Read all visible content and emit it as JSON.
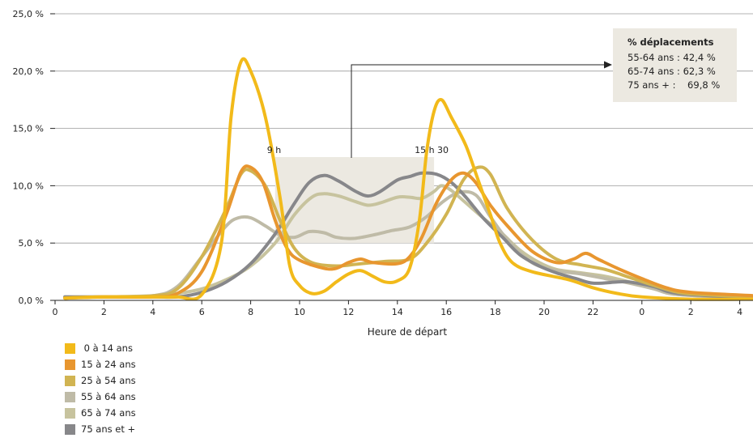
{
  "chart_data": {
    "type": "line",
    "xlabel": "Heure de départ",
    "ylabel": "",
    "x_ticks": [
      "0",
      "2",
      "4",
      "6",
      "8",
      "10",
      "12",
      "14",
      "16",
      "18",
      "20",
      "22",
      "0",
      "2",
      "4"
    ],
    "y_ticks": [
      "0,0 %",
      "5,0 %",
      "10,0 %",
      "15,0 %",
      "20,0 %",
      "25,0 %"
    ],
    "ylim": [
      0,
      25
    ],
    "xlim_hours": [
      0,
      28.6
    ],
    "grid": "horizontal",
    "legend_position": "bottom-left",
    "highlight_band": {
      "x_start": 9,
      "x_end": 15.5,
      "y_start": 5,
      "y_end": 12.5,
      "left_label": "9 h",
      "right_label": "15 h 30"
    },
    "info_box": {
      "title": "% déplacements",
      "lines": [
        "55-64 ans : 42,4 %",
        "65-74 ans : 62,3 %",
        "75 ans + :    69,8 %"
      ]
    },
    "series": [
      {
        "name": " 0 à 14 ans",
        "color": "#F2BA1A",
        "points": [
          [
            0.4,
            0.2
          ],
          [
            2,
            0.3
          ],
          [
            4,
            0.3
          ],
          [
            5,
            0.3
          ],
          [
            6,
            0.5
          ],
          [
            6.8,
            5
          ],
          [
            7.2,
            16
          ],
          [
            7.6,
            20.8
          ],
          [
            8,
            20
          ],
          [
            8.6,
            16
          ],
          [
            9.2,
            9
          ],
          [
            9.6,
            3
          ],
          [
            10,
            1.3
          ],
          [
            10.5,
            0.6
          ],
          [
            11,
            0.8
          ],
          [
            11.5,
            1.6
          ],
          [
            12,
            2.3
          ],
          [
            12.5,
            2.6
          ],
          [
            13,
            2.1
          ],
          [
            13.5,
            1.6
          ],
          [
            14,
            1.7
          ],
          [
            14.5,
            2.8
          ],
          [
            14.9,
            7
          ],
          [
            15.2,
            13
          ],
          [
            15.5,
            16.5
          ],
          [
            15.8,
            17.5
          ],
          [
            16.2,
            16
          ],
          [
            16.8,
            13.5
          ],
          [
            17.3,
            10.5
          ],
          [
            17.8,
            7.5
          ],
          [
            18.2,
            5
          ],
          [
            18.7,
            3.3
          ],
          [
            19.5,
            2.5
          ],
          [
            21,
            1.8
          ],
          [
            22,
            1.1
          ],
          [
            23,
            0.6
          ],
          [
            24,
            0.3
          ],
          [
            26,
            0.1
          ],
          [
            28.6,
            0.1
          ]
        ]
      },
      {
        "name": "15 à 24 ans",
        "color": "#E8962F",
        "points": [
          [
            0.4,
            0.2
          ],
          [
            2,
            0.3
          ],
          [
            4,
            0.3
          ],
          [
            5,
            0.6
          ],
          [
            6,
            2.5
          ],
          [
            7,
            7.5
          ],
          [
            7.6,
            11.2
          ],
          [
            8,
            11.6
          ],
          [
            8.5,
            10.3
          ],
          [
            9,
            7
          ],
          [
            9.5,
            4.5
          ],
          [
            10,
            3.5
          ],
          [
            11,
            2.8
          ],
          [
            11.5,
            2.8
          ],
          [
            12,
            3.3
          ],
          [
            12.5,
            3.6
          ],
          [
            13,
            3.3
          ],
          [
            14,
            3.2
          ],
          [
            14.5,
            3.8
          ],
          [
            15,
            5.5
          ],
          [
            15.6,
            8.5
          ],
          [
            16.2,
            10.5
          ],
          [
            16.7,
            11.1
          ],
          [
            17.2,
            10.3
          ],
          [
            17.8,
            8.3
          ],
          [
            18.5,
            6.5
          ],
          [
            19.5,
            4.3
          ],
          [
            20.5,
            3.3
          ],
          [
            21.2,
            3.6
          ],
          [
            21.7,
            4.1
          ],
          [
            22.2,
            3.6
          ],
          [
            23,
            2.8
          ],
          [
            24,
            1.9
          ],
          [
            25,
            1.1
          ],
          [
            26,
            0.7
          ],
          [
            28.6,
            0.4
          ]
        ]
      },
      {
        "name": "25 à 54 ans",
        "color": "#D1B452",
        "points": [
          [
            0.4,
            0.2
          ],
          [
            2,
            0.3
          ],
          [
            4,
            0.4
          ],
          [
            5,
            1
          ],
          [
            6,
            3.8
          ],
          [
            7,
            8
          ],
          [
            7.6,
            11
          ],
          [
            8,
            11.3
          ],
          [
            8.6,
            10
          ],
          [
            9.2,
            7
          ],
          [
            9.8,
            4.5
          ],
          [
            10.5,
            3.3
          ],
          [
            11.5,
            3.0
          ],
          [
            12.5,
            3.2
          ],
          [
            13.5,
            3.4
          ],
          [
            14.5,
            3.6
          ],
          [
            15.2,
            5
          ],
          [
            16,
            7.5
          ],
          [
            16.7,
            10.5
          ],
          [
            17.3,
            11.6
          ],
          [
            17.8,
            11
          ],
          [
            18.5,
            8
          ],
          [
            19.5,
            5.3
          ],
          [
            20.5,
            3.6
          ],
          [
            21.5,
            3.1
          ],
          [
            22.5,
            2.7
          ],
          [
            23.5,
            2.0
          ],
          [
            24.5,
            1.3
          ],
          [
            25.5,
            0.7
          ],
          [
            26.5,
            0.5
          ],
          [
            28.6,
            0.3
          ]
        ]
      },
      {
        "name": "55 à 64 ans",
        "color": "#BFBBA7",
        "points": [
          [
            0.4,
            0.3
          ],
          [
            2,
            0.3
          ],
          [
            4,
            0.4
          ],
          [
            5,
            1.2
          ],
          [
            6,
            3.8
          ],
          [
            7,
            6.5
          ],
          [
            7.5,
            7.2
          ],
          [
            8,
            7.2
          ],
          [
            8.6,
            6.5
          ],
          [
            9.2,
            5.7
          ],
          [
            9.8,
            5.5
          ],
          [
            10.4,
            6.0
          ],
          [
            11,
            5.9
          ],
          [
            11.5,
            5.5
          ],
          [
            12.2,
            5.4
          ],
          [
            13,
            5.7
          ],
          [
            13.8,
            6.1
          ],
          [
            14.5,
            6.4
          ],
          [
            15.2,
            7.3
          ],
          [
            15.8,
            8.5
          ],
          [
            16.5,
            9.4
          ],
          [
            17.2,
            9.2
          ],
          [
            17.8,
            7.3
          ],
          [
            18.5,
            5.3
          ],
          [
            19.5,
            3.3
          ],
          [
            20.5,
            2.6
          ],
          [
            21.5,
            2.3
          ],
          [
            22.5,
            1.9
          ],
          [
            23.5,
            1.5
          ],
          [
            24.5,
            1.0
          ],
          [
            25.5,
            0.5
          ],
          [
            28.6,
            0.2
          ]
        ]
      },
      {
        "name": "65 à 74 ans",
        "color": "#C7C39E",
        "points": [
          [
            0.4,
            0.3
          ],
          [
            2,
            0.3
          ],
          [
            4,
            0.4
          ],
          [
            5,
            0.6
          ],
          [
            6,
            1.0
          ],
          [
            7,
            1.8
          ],
          [
            8,
            3.0
          ],
          [
            9,
            5
          ],
          [
            9.8,
            7.5
          ],
          [
            10.5,
            9.0
          ],
          [
            11,
            9.3
          ],
          [
            11.6,
            9.1
          ],
          [
            12.3,
            8.6
          ],
          [
            12.8,
            8.3
          ],
          [
            13.3,
            8.5
          ],
          [
            14,
            9.0
          ],
          [
            14.5,
            9.0
          ],
          [
            15,
            8.9
          ],
          [
            15.5,
            9.5
          ],
          [
            15.8,
            10
          ],
          [
            16.2,
            9.6
          ],
          [
            16.8,
            8.5
          ],
          [
            17.5,
            7.2
          ],
          [
            18.3,
            5.8
          ],
          [
            19,
            4.4
          ],
          [
            19.8,
            3.3
          ],
          [
            20.5,
            2.7
          ],
          [
            21.5,
            2.4
          ],
          [
            22.5,
            2.1
          ],
          [
            23.5,
            1.6
          ],
          [
            24.5,
            1.0
          ],
          [
            25.5,
            0.5
          ],
          [
            28.6,
            0.2
          ]
        ]
      },
      {
        "name": "75 ans et +",
        "color": "#87878A",
        "points": [
          [
            0.4,
            0.3
          ],
          [
            2,
            0.3
          ],
          [
            4,
            0.3
          ],
          [
            5,
            0.3
          ],
          [
            6,
            0.7
          ],
          [
            7,
            1.6
          ],
          [
            8,
            3.2
          ],
          [
            9,
            5.8
          ],
          [
            9.8,
            8.5
          ],
          [
            10.4,
            10.3
          ],
          [
            11,
            10.9
          ],
          [
            11.6,
            10.4
          ],
          [
            12.3,
            9.5
          ],
          [
            12.8,
            9.1
          ],
          [
            13.3,
            9.5
          ],
          [
            14,
            10.5
          ],
          [
            14.5,
            10.8
          ],
          [
            15,
            11.1
          ],
          [
            15.6,
            11.0
          ],
          [
            16.2,
            10.3
          ],
          [
            16.8,
            9
          ],
          [
            17.5,
            7.2
          ],
          [
            18.3,
            5.5
          ],
          [
            19,
            4
          ],
          [
            19.8,
            3
          ],
          [
            20.5,
            2.4
          ],
          [
            21.3,
            1.9
          ],
          [
            22,
            1.5
          ],
          [
            23,
            1.6
          ],
          [
            23.5,
            1.6
          ],
          [
            24.5,
            1.2
          ],
          [
            25.5,
            0.6
          ],
          [
            28.6,
            0.2
          ]
        ]
      }
    ]
  }
}
